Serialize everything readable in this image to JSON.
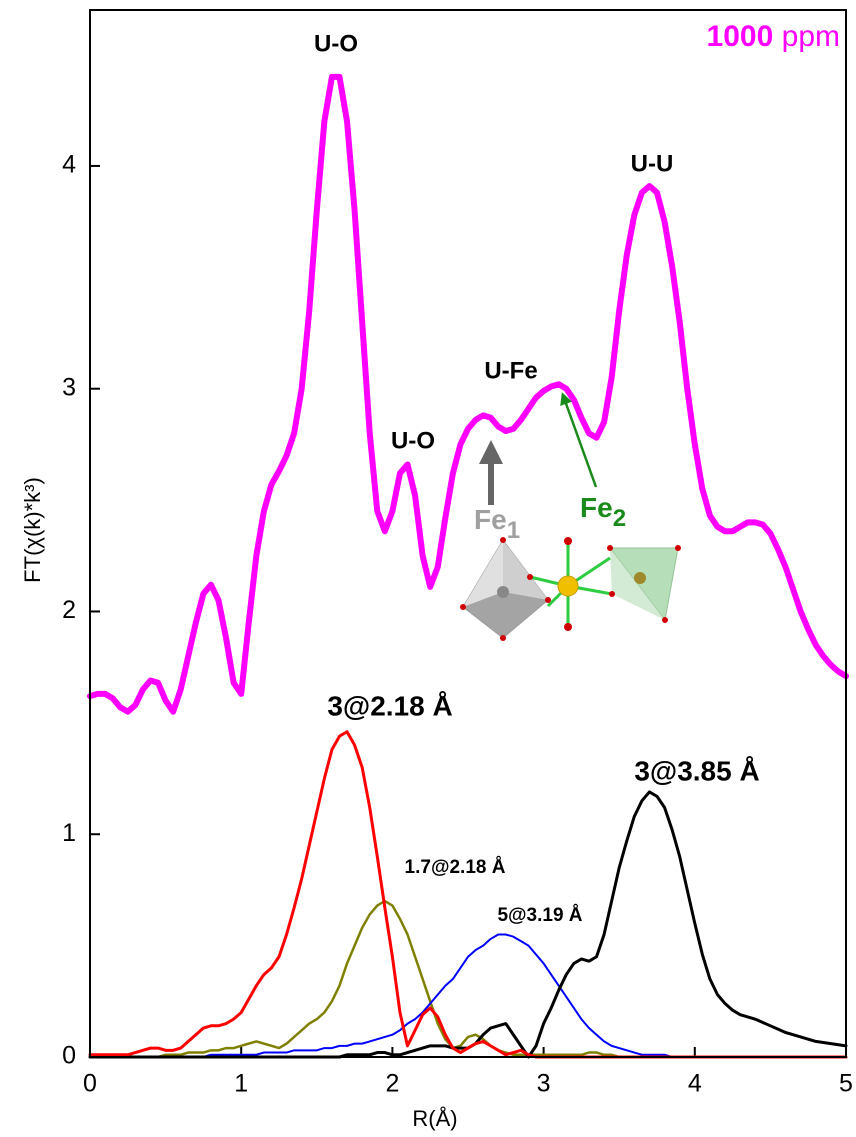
{
  "chart_data": {
    "type": "line",
    "title": {
      "value": "1000",
      "unit": "ppm"
    },
    "x_label": "R(Å)",
    "y_label": "FT(χ(k)*k³)",
    "xlim": [
      0,
      5
    ],
    "xticks": [
      0,
      1,
      2,
      3,
      4,
      5
    ],
    "ylim": [
      0,
      4.7
    ],
    "yticks": [
      0,
      1,
      2,
      3,
      4
    ],
    "annotations": [
      "U-O",
      "U-O",
      "U-Fe",
      "U-U",
      "3@2.18 Å",
      "1.7@2.18 Å",
      "5@3.19 Å",
      "3@3.85 Å"
    ],
    "sites": [
      {
        "text": "Fe",
        "sub": "1"
      },
      {
        "text": "Fe",
        "sub": "2"
      }
    ],
    "x": [
      0,
      0.05,
      0.1,
      0.15,
      0.2,
      0.25,
      0.3,
      0.35,
      0.4,
      0.45,
      0.5,
      0.55,
      0.6,
      0.65,
      0.7,
      0.75,
      0.8,
      0.85,
      0.9,
      0.95,
      1,
      1.05,
      1.1,
      1.15,
      1.2,
      1.25,
      1.3,
      1.35,
      1.4,
      1.45,
      1.5,
      1.55,
      1.6,
      1.65,
      1.7,
      1.75,
      1.8,
      1.85,
      1.9,
      1.95,
      2,
      2.05,
      2.1,
      2.15,
      2.2,
      2.25,
      2.3,
      2.35,
      2.4,
      2.45,
      2.5,
      2.55,
      2.6,
      2.65,
      2.7,
      2.75,
      2.8,
      2.85,
      2.9,
      2.95,
      3,
      3.05,
      3.1,
      3.15,
      3.2,
      3.25,
      3.3,
      3.35,
      3.4,
      3.45,
      3.5,
      3.55,
      3.6,
      3.65,
      3.7,
      3.75,
      3.8,
      3.85,
      3.9,
      3.95,
      4,
      4.05,
      4.1,
      4.15,
      4.2,
      4.25,
      4.3,
      4.35,
      4.4,
      4.45,
      4.5,
      4.55,
      4.6,
      4.65,
      4.7,
      4.75,
      4.8,
      4.85,
      4.9,
      4.95,
      5
    ],
    "series": [
      {
        "color": "#ff00ff",
        "width": 6,
        "values": [
          1.62,
          1.63,
          1.63,
          1.61,
          1.57,
          1.55,
          1.58,
          1.65,
          1.69,
          1.68,
          1.6,
          1.55,
          1.65,
          1.8,
          1.95,
          2.08,
          2.12,
          2.05,
          1.88,
          1.68,
          1.63,
          1.95,
          2.25,
          2.45,
          2.57,
          2.63,
          2.7,
          2.8,
          3.0,
          3.35,
          3.8,
          4.2,
          4.4,
          4.4,
          4.2,
          3.8,
          3.3,
          2.8,
          2.45,
          2.36,
          2.45,
          2.62,
          2.66,
          2.52,
          2.25,
          2.11,
          2.2,
          2.42,
          2.62,
          2.75,
          2.82,
          2.86,
          2.88,
          2.87,
          2.83,
          2.81,
          2.82,
          2.86,
          2.91,
          2.96,
          2.99,
          3.01,
          3.02,
          3.0,
          2.95,
          2.87,
          2.8,
          2.78,
          2.85,
          3.05,
          3.35,
          3.6,
          3.78,
          3.88,
          3.91,
          3.88,
          3.75,
          3.55,
          3.3,
          3.0,
          2.75,
          2.55,
          2.43,
          2.38,
          2.36,
          2.36,
          2.38,
          2.4,
          2.4,
          2.39,
          2.35,
          2.28,
          2.2,
          2.1,
          2.0,
          1.92,
          1.85,
          1.8,
          1.76,
          1.73,
          1.71
        ]
      },
      {
        "color": "#808000",
        "width": 2.5,
        "values": [
          0,
          0,
          0,
          0,
          0,
          0,
          0,
          0,
          0,
          0,
          0.01,
          0.01,
          0.01,
          0.02,
          0.02,
          0.02,
          0.03,
          0.03,
          0.04,
          0.04,
          0.05,
          0.06,
          0.07,
          0.06,
          0.05,
          0.04,
          0.06,
          0.09,
          0.12,
          0.15,
          0.17,
          0.2,
          0.25,
          0.32,
          0.42,
          0.5,
          0.58,
          0.64,
          0.68,
          0.7,
          0.68,
          0.62,
          0.55,
          0.45,
          0.35,
          0.25,
          0.15,
          0.08,
          0.04,
          0.05,
          0.09,
          0.1,
          0.08,
          0.05,
          0.03,
          0.02,
          0.01,
          0.01,
          0.01,
          0.01,
          0.01,
          0.01,
          0.01,
          0.01,
          0.01,
          0.01,
          0.02,
          0.02,
          0.01,
          0.01,
          0,
          0,
          0,
          0,
          0,
          0,
          0,
          0,
          0,
          0,
          0,
          0,
          0,
          0,
          0,
          0,
          0,
          0,
          0,
          0,
          0,
          0,
          0,
          0,
          0,
          0,
          0,
          0,
          0,
          0,
          0
        ]
      },
      {
        "color": "#0000ff",
        "width": 2,
        "values": [
          0,
          0,
          0,
          0,
          0,
          0,
          0,
          0,
          0,
          0,
          0,
          0,
          0,
          0,
          0,
          0,
          0.01,
          0.01,
          0.01,
          0.01,
          0.01,
          0.01,
          0.01,
          0.02,
          0.02,
          0.02,
          0.02,
          0.03,
          0.03,
          0.03,
          0.03,
          0.04,
          0.04,
          0.05,
          0.05,
          0.06,
          0.06,
          0.07,
          0.08,
          0.09,
          0.1,
          0.12,
          0.15,
          0.17,
          0.2,
          0.24,
          0.28,
          0.32,
          0.35,
          0.4,
          0.45,
          0.48,
          0.5,
          0.53,
          0.55,
          0.55,
          0.54,
          0.52,
          0.5,
          0.46,
          0.42,
          0.37,
          0.32,
          0.27,
          0.22,
          0.17,
          0.13,
          0.1,
          0.07,
          0.05,
          0.04,
          0.03,
          0.02,
          0.01,
          0.01,
          0.01,
          0.01,
          0,
          0,
          0,
          0,
          0,
          0,
          0,
          0,
          0,
          0,
          0,
          0,
          0,
          0,
          0,
          0,
          0,
          0,
          0,
          0,
          0,
          0,
          0,
          0
        ]
      },
      {
        "color": "#000000",
        "width": 3,
        "values": [
          0,
          0,
          0,
          0,
          0,
          0,
          0,
          0,
          0,
          0,
          0,
          0,
          0,
          0,
          0,
          0,
          0,
          0,
          0,
          0,
          0,
          0,
          0,
          0,
          0,
          0,
          0,
          0,
          0,
          0,
          0,
          0,
          0,
          0,
          0.01,
          0.01,
          0.01,
          0.01,
          0.02,
          0.02,
          0.01,
          0.01,
          0.02,
          0.03,
          0.04,
          0.05,
          0.05,
          0.05,
          0.04,
          0.04,
          0.04,
          0.06,
          0.1,
          0.13,
          0.14,
          0.15,
          0.1,
          0.05,
          0.0,
          0.05,
          0.15,
          0.22,
          0.3,
          0.37,
          0.42,
          0.44,
          0.43,
          0.45,
          0.55,
          0.7,
          0.85,
          0.97,
          1.08,
          1.15,
          1.19,
          1.17,
          1.12,
          1.02,
          0.9,
          0.75,
          0.6,
          0.46,
          0.35,
          0.28,
          0.24,
          0.21,
          0.19,
          0.18,
          0.17,
          0.155,
          0.14,
          0.125,
          0.11,
          0.1,
          0.09,
          0.08,
          0.07,
          0.065,
          0.06,
          0.055,
          0.05
        ]
      },
      {
        "color": "#ff0000",
        "width": 3,
        "values": [
          0.01,
          0.01,
          0.01,
          0.01,
          0.01,
          0.01,
          0.02,
          0.03,
          0.04,
          0.04,
          0.03,
          0.03,
          0.04,
          0.07,
          0.1,
          0.13,
          0.14,
          0.14,
          0.15,
          0.17,
          0.2,
          0.26,
          0.32,
          0.37,
          0.4,
          0.45,
          0.55,
          0.67,
          0.8,
          0.95,
          1.1,
          1.25,
          1.38,
          1.44,
          1.46,
          1.4,
          1.3,
          1.12,
          0.9,
          0.67,
          0.45,
          0.2,
          0.05,
          0.12,
          0.19,
          0.22,
          0.18,
          0.1,
          0.04,
          0.02,
          0.04,
          0.06,
          0.07,
          0.05,
          0.03,
          0.01,
          0.02,
          0.03,
          0.01,
          0,
          0,
          0,
          0,
          0,
          0,
          0,
          0,
          0,
          0,
          0,
          0,
          0,
          0,
          0,
          0,
          0,
          0,
          0,
          0,
          0,
          0,
          0,
          0,
          0,
          0,
          0,
          0,
          0,
          0,
          0,
          0,
          0,
          0,
          0,
          0,
          0,
          0,
          0,
          0,
          0,
          0
        ]
      }
    ]
  }
}
